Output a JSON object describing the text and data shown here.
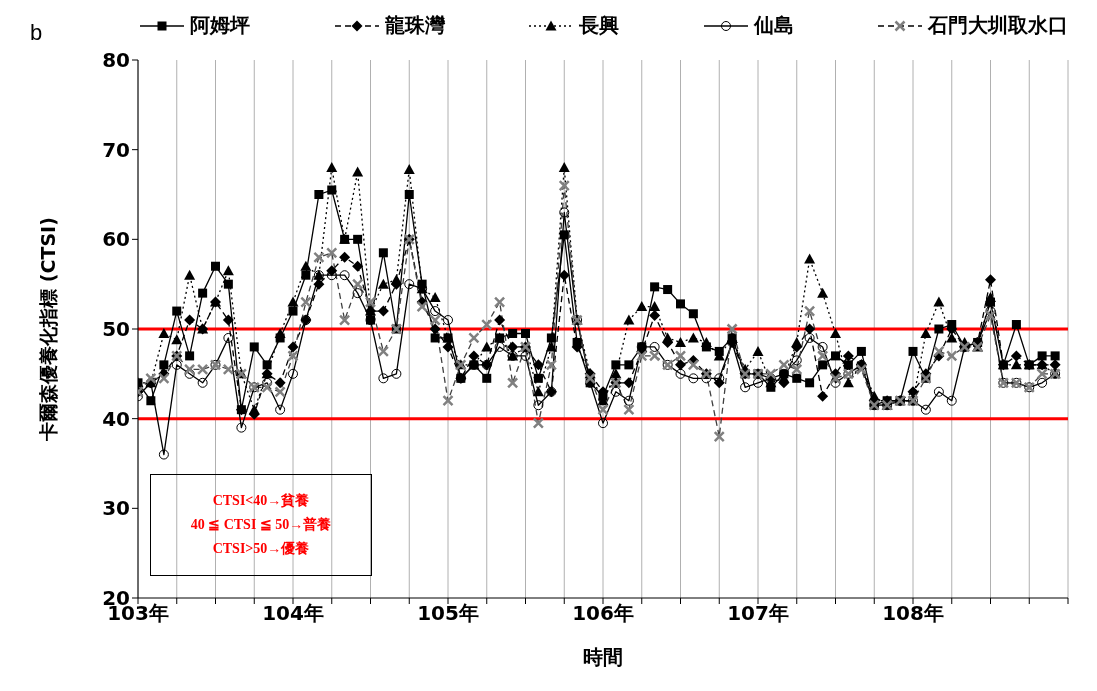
{
  "chart_data": {
    "type": "line",
    "title": "b",
    "xlabel": "時間",
    "ylabel": "卡爾森優養化指標 (CTSI)",
    "x": [
      103,
      103.083,
      103.167,
      103.25,
      103.333,
      103.417,
      103.5,
      103.583,
      103.667,
      103.75,
      103.833,
      103.917,
      104,
      104.083,
      104.167,
      104.25,
      104.333,
      104.417,
      104.5,
      104.583,
      104.667,
      104.75,
      104.833,
      104.917,
      105,
      105.083,
      105.167,
      105.25,
      105.333,
      105.417,
      105.5,
      105.583,
      105.667,
      105.75,
      105.833,
      105.917,
      106,
      106.083,
      106.167,
      106.25,
      106.333,
      106.417,
      106.5,
      106.583,
      106.667,
      106.75,
      106.833,
      106.917,
      107,
      107.083,
      107.167,
      107.25,
      107.333,
      107.417,
      107.5,
      107.583,
      107.667,
      107.75,
      107.833,
      107.917,
      108,
      108.083,
      108.167,
      108.25,
      108.333,
      108.417,
      108.5,
      108.583,
      108.667,
      108.75,
      108.833,
      108.917
    ],
    "series": [
      {
        "name": "阿姆坪",
        "color": "#000000",
        "marker": "square",
        "line_style": "solid",
        "values": [
          44,
          42,
          46,
          52,
          47,
          54,
          57,
          55,
          41,
          48,
          46,
          49,
          52,
          56,
          65,
          65.5,
          60,
          60,
          51,
          58.5,
          50,
          65,
          55,
          49,
          49,
          44.5,
          46,
          44.5,
          49,
          49.5,
          49.5,
          44.5,
          49,
          60.5,
          48.5,
          44,
          42.5,
          46,
          46,
          48,
          54.7,
          54.4,
          52.8,
          51.7,
          48,
          47.5,
          49,
          45,
          45,
          43.5,
          45,
          44.5,
          44,
          46,
          47,
          46,
          47.5,
          41.5,
          42,
          42,
          47.5,
          44.5,
          50,
          50.5,
          48,
          48.5,
          53,
          46,
          50.5,
          46,
          47,
          47
        ]
      },
      {
        "name": "龍珠灣",
        "color": "#000000",
        "marker": "diamond",
        "line_style": "dashed",
        "values": [
          43,
          44,
          45,
          47,
          51,
          50,
          53,
          51,
          41,
          40.5,
          45,
          44,
          48,
          51,
          55,
          56.5,
          58,
          57,
          52,
          52,
          55,
          60,
          53,
          50,
          48,
          44.5,
          47,
          46,
          51,
          48,
          48,
          46,
          43,
          56,
          48,
          45,
          43,
          44,
          44,
          47.5,
          51.5,
          48.5,
          46,
          46.5,
          45,
          44,
          48.5,
          45,
          45,
          44.5,
          44,
          48,
          50,
          42.5,
          45,
          47,
          46,
          42,
          42,
          42,
          43,
          45,
          47,
          50,
          48,
          48.5,
          55.5,
          46,
          47,
          46,
          46,
          46
        ]
      },
      {
        "name": "長興",
        "color": "#000000",
        "marker": "triangle",
        "line_style": "dotted",
        "values": [
          44,
          44,
          49.5,
          48.8,
          56,
          50,
          53,
          56.5,
          45,
          41,
          45,
          49.5,
          53,
          57,
          56,
          68,
          60,
          67.5,
          52,
          55,
          55.5,
          67.8,
          54.5,
          53.5,
          49,
          46,
          46,
          48,
          49,
          47,
          48,
          43,
          48,
          68,
          51,
          45,
          42,
          45,
          51,
          52.5,
          52.5,
          49,
          48.5,
          49,
          48.5,
          47,
          49,
          45.5,
          47.5,
          44,
          44.5,
          48.5,
          57.8,
          54,
          49.5,
          44,
          46,
          42.5,
          41.5,
          42,
          42,
          49.5,
          53,
          49,
          48.5,
          48,
          53.5,
          46,
          46,
          46,
          46,
          45
        ]
      },
      {
        "name": "仙島",
        "color": "#000000",
        "marker": "circle",
        "line_style": "solid",
        "values": [
          42.5,
          44,
          36,
          46,
          45,
          44,
          46,
          49,
          39,
          43.5,
          44,
          41,
          45,
          51,
          56,
          56,
          56,
          54,
          51,
          44.5,
          45,
          55,
          54.5,
          52,
          51,
          44.5,
          46,
          46,
          48,
          47,
          47,
          41.5,
          43,
          63,
          51,
          44,
          39.5,
          43,
          42,
          48,
          48,
          46,
          45,
          44.5,
          44.5,
          44.5,
          48.5,
          43.5,
          44,
          44.5,
          45,
          46.5,
          49,
          48,
          44,
          45,
          46,
          41.5,
          41.5,
          42,
          42,
          41,
          43,
          42,
          48,
          48.5,
          52,
          44,
          44,
          43.5,
          44,
          45
        ]
      },
      {
        "name": "石門大圳取水口",
        "color": "#808080",
        "marker": "cross",
        "line_style": "dashed",
        "values": [
          43,
          44.5,
          44.5,
          47,
          45.5,
          45.5,
          46,
          45.5,
          45,
          43.5,
          43.5,
          43,
          47,
          53,
          58,
          58.5,
          51,
          55,
          53,
          47.5,
          50,
          60,
          52.5,
          51,
          42,
          46,
          49,
          50.5,
          53,
          44,
          48,
          39.5,
          46,
          66,
          51,
          44.5,
          41,
          44,
          41,
          47,
          47,
          46,
          47,
          46,
          45,
          38,
          50,
          45,
          45,
          45,
          46,
          45.5,
          52,
          47,
          44.5,
          45,
          45.5,
          41.5,
          41.5,
          42,
          42,
          44.5,
          47.5,
          47,
          48,
          48,
          51.5,
          44,
          44,
          43.5,
          45,
          45
        ]
      }
    ],
    "xlim": [
      103,
      109
    ],
    "xticks": [
      {
        "value": 103,
        "label": "103年"
      },
      {
        "value": 103.25,
        "label": null
      },
      {
        "value": 103.5,
        "label": null
      },
      {
        "value": 103.75,
        "label": null
      },
      {
        "value": 104,
        "label": "104年"
      },
      {
        "value": 104.25,
        "label": null
      },
      {
        "value": 104.5,
        "label": null
      },
      {
        "value": 104.75,
        "label": null
      },
      {
        "value": 105,
        "label": "105年"
      },
      {
        "value": 105.25,
        "label": null
      },
      {
        "value": 105.5,
        "label": null
      },
      {
        "value": 105.75,
        "label": null
      },
      {
        "value": 106,
        "label": "106年"
      },
      {
        "value": 106.25,
        "label": null
      },
      {
        "value": 106.5,
        "label": null
      },
      {
        "value": 106.75,
        "label": null
      },
      {
        "value": 107,
        "label": "107年"
      },
      {
        "value": 107.25,
        "label": null
      },
      {
        "value": 107.5,
        "label": null
      },
      {
        "value": 107.75,
        "label": null
      },
      {
        "value": 108,
        "label": "108年"
      },
      {
        "value": 108.25,
        "label": null
      },
      {
        "value": 108.5,
        "label": null
      },
      {
        "value": 108.75,
        "label": null
      },
      {
        "value": 109,
        "label": null
      }
    ],
    "ylim": [
      20,
      80
    ],
    "yticks": [
      20,
      30,
      40,
      50,
      60,
      70,
      80
    ],
    "grid": "x",
    "legend": "top",
    "ref_lines": [
      {
        "axis": "y",
        "value": 50,
        "color": "#ff0000"
      },
      {
        "axis": "y",
        "value": 40,
        "color": "#ff0000"
      }
    ],
    "annotations": [
      "CTSI<40→貧養",
      "40 ≦ CTSI ≦ 50→普養",
      "CTSI>50→優養"
    ]
  }
}
